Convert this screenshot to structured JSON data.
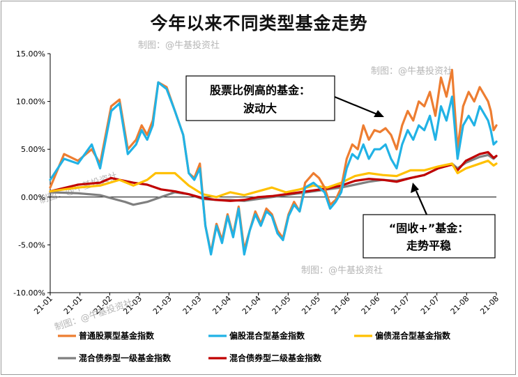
{
  "title": "今年以来不同类型基金走势",
  "watermarks": [
    "制图：@牛基投资社",
    "制图：@牛基投资社",
    "制图：@牛基投资社",
    "制图：@牛基投资社",
    "制图：@牛基投资社"
  ],
  "annotations": [
    {
      "lines": [
        "股票比例高的基金：",
        "波动大"
      ]
    },
    {
      "lines": [
        "“固收+”基金：",
        "走势平稳"
      ]
    }
  ],
  "chart_data": {
    "type": "line",
    "title": "今年以来不同类型基金走势",
    "ylim": [
      -10,
      15
    ],
    "y_ticks": [
      "15.00%",
      "10.00%",
      "5.00%",
      "0.00%",
      "-5.00%",
      "-10.00%"
    ],
    "x_tick_labels": [
      "21-01",
      "21-01",
      "21-02",
      "21-03",
      "21-03",
      "21-03",
      "21-04",
      "21-04",
      "21-05",
      "21-05",
      "21-06",
      "21-06",
      "21-07",
      "21-07",
      "21-08",
      "21-08"
    ],
    "grid": false,
    "legend": "bottom",
    "series": [
      {
        "name": "普通股票型基金指数",
        "color": "#ed7d31",
        "points": [
          [
            0,
            1.0
          ],
          [
            5,
            4.5
          ],
          [
            10,
            3.8
          ],
          [
            15,
            5.0
          ],
          [
            18,
            3.5
          ],
          [
            22,
            9.5
          ],
          [
            25,
            10.2
          ],
          [
            28,
            5.0
          ],
          [
            31,
            6.0
          ],
          [
            33,
            7.5
          ],
          [
            35,
            6.5
          ],
          [
            37,
            8.0
          ],
          [
            39,
            12.0
          ],
          [
            42,
            11.5
          ],
          [
            45,
            9.0
          ],
          [
            48,
            6.5
          ],
          [
            50,
            2.5
          ],
          [
            52,
            2.0
          ],
          [
            54,
            3.5
          ],
          [
            56,
            -3.0
          ],
          [
            58,
            -5.8
          ],
          [
            60,
            -2.8
          ],
          [
            62,
            -4.5
          ],
          [
            64,
            -1.8
          ],
          [
            66,
            -4.0
          ],
          [
            68,
            -1.0
          ],
          [
            70,
            -5.5
          ],
          [
            72,
            -3.5
          ],
          [
            74,
            -1.5
          ],
          [
            76,
            -2.8
          ],
          [
            78,
            -1.2
          ],
          [
            80,
            -1.8
          ],
          [
            82,
            -3.5
          ],
          [
            84,
            -4.3
          ],
          [
            86,
            -1.8
          ],
          [
            88,
            -0.5
          ],
          [
            90,
            -1.5
          ],
          [
            92,
            1.5
          ],
          [
            95,
            2.5
          ],
          [
            97,
            2.0
          ],
          [
            99,
            1.0
          ],
          [
            101,
            -0.8
          ],
          [
            103,
            -0.3
          ],
          [
            105,
            1.0
          ],
          [
            107,
            4.0
          ],
          [
            109,
            5.5
          ],
          [
            111,
            5.0
          ],
          [
            113,
            7.5
          ],
          [
            115,
            6.0
          ],
          [
            117,
            7.0
          ],
          [
            119,
            6.8
          ],
          [
            121,
            7.2
          ],
          [
            123,
            6.5
          ],
          [
            125,
            5.0
          ],
          [
            127,
            7.5
          ],
          [
            129,
            9.0
          ],
          [
            131,
            8.0
          ],
          [
            133,
            10.0
          ],
          [
            135,
            9.5
          ],
          [
            137,
            11.0
          ],
          [
            139,
            8.5
          ],
          [
            141,
            12.5
          ],
          [
            143,
            10.5
          ],
          [
            145,
            13.3
          ],
          [
            147,
            5.0
          ],
          [
            149,
            9.5
          ],
          [
            151,
            11.0
          ],
          [
            153,
            10.0
          ],
          [
            155,
            11.5
          ],
          [
            157,
            10.5
          ],
          [
            158,
            10.0
          ],
          [
            159,
            9.0
          ],
          [
            160,
            7.0
          ],
          [
            161,
            7.5
          ]
        ]
      },
      {
        "name": "偏股混合型基金指数",
        "color": "#21b2e5",
        "points": [
          [
            0,
            1.8
          ],
          [
            5,
            4.0
          ],
          [
            10,
            3.5
          ],
          [
            15,
            5.5
          ],
          [
            18,
            3.0
          ],
          [
            22,
            9.0
          ],
          [
            25,
            9.8
          ],
          [
            28,
            4.5
          ],
          [
            31,
            5.5
          ],
          [
            33,
            7.0
          ],
          [
            35,
            6.0
          ],
          [
            37,
            7.5
          ],
          [
            39,
            12.0
          ],
          [
            42,
            11.3
          ],
          [
            45,
            9.0
          ],
          [
            48,
            6.5
          ],
          [
            50,
            2.5
          ],
          [
            52,
            1.8
          ],
          [
            54,
            3.0
          ],
          [
            56,
            -3.0
          ],
          [
            58,
            -6.0
          ],
          [
            60,
            -3.0
          ],
          [
            62,
            -4.8
          ],
          [
            64,
            -2.0
          ],
          [
            66,
            -4.2
          ],
          [
            68,
            -1.2
          ],
          [
            70,
            -6.0
          ],
          [
            72,
            -3.5
          ],
          [
            74,
            -1.8
          ],
          [
            76,
            -3.0
          ],
          [
            78,
            -1.5
          ],
          [
            80,
            -2.0
          ],
          [
            82,
            -3.8
          ],
          [
            84,
            -4.5
          ],
          [
            86,
            -2.0
          ],
          [
            88,
            -0.8
          ],
          [
            90,
            -1.5
          ],
          [
            92,
            1.0
          ],
          [
            95,
            1.5
          ],
          [
            97,
            1.0
          ],
          [
            99,
            0.5
          ],
          [
            101,
            -1.2
          ],
          [
            103,
            -0.5
          ],
          [
            105,
            0.5
          ],
          [
            107,
            3.0
          ],
          [
            109,
            4.5
          ],
          [
            111,
            4.0
          ],
          [
            113,
            5.5
          ],
          [
            115,
            4.0
          ],
          [
            117,
            5.0
          ],
          [
            119,
            5.0
          ],
          [
            121,
            5.5
          ],
          [
            123,
            4.0
          ],
          [
            125,
            3.0
          ],
          [
            127,
            5.5
          ],
          [
            129,
            7.0
          ],
          [
            131,
            6.0
          ],
          [
            133,
            7.5
          ],
          [
            135,
            7.0
          ],
          [
            137,
            8.5
          ],
          [
            139,
            6.0
          ],
          [
            141,
            9.5
          ],
          [
            143,
            8.0
          ],
          [
            145,
            10.5
          ],
          [
            147,
            4.0
          ],
          [
            149,
            7.5
          ],
          [
            151,
            8.5
          ],
          [
            153,
            7.5
          ],
          [
            155,
            9.5
          ],
          [
            157,
            8.5
          ],
          [
            158,
            8.0
          ],
          [
            159,
            7.0
          ],
          [
            160,
            5.5
          ],
          [
            161,
            5.8
          ]
        ]
      },
      {
        "name": "偏债混合型基金指数",
        "color": "#ffc000",
        "points": [
          [
            0,
            0.6
          ],
          [
            10,
            1.0
          ],
          [
            18,
            1.2
          ],
          [
            25,
            1.8
          ],
          [
            30,
            1.2
          ],
          [
            35,
            1.8
          ],
          [
            38,
            2.5
          ],
          [
            45,
            2.5
          ],
          [
            50,
            1.2
          ],
          [
            55,
            0.3
          ],
          [
            60,
            0.0
          ],
          [
            65,
            0.5
          ],
          [
            70,
            0.2
          ],
          [
            75,
            0.6
          ],
          [
            80,
            1.0
          ],
          [
            85,
            0.5
          ],
          [
            90,
            0.8
          ],
          [
            95,
            1.2
          ],
          [
            100,
            1.0
          ],
          [
            105,
            1.5
          ],
          [
            110,
            2.2
          ],
          [
            115,
            2.5
          ],
          [
            120,
            2.3
          ],
          [
            125,
            2.2
          ],
          [
            130,
            2.8
          ],
          [
            135,
            2.8
          ],
          [
            140,
            3.2
          ],
          [
            145,
            3.5
          ],
          [
            147,
            2.5
          ],
          [
            150,
            3.0
          ],
          [
            155,
            3.5
          ],
          [
            158,
            3.8
          ],
          [
            160,
            3.3
          ],
          [
            161,
            3.5
          ]
        ]
      },
      {
        "name": "混合债券型一级基金指数",
        "color": "#7f7f7f",
        "points": [
          [
            0,
            0.5
          ],
          [
            10,
            0.4
          ],
          [
            18,
            0.2
          ],
          [
            23,
            -0.2
          ],
          [
            27,
            -0.5
          ],
          [
            30,
            -0.8
          ],
          [
            35,
            -0.5
          ],
          [
            40,
            0.0
          ],
          [
            45,
            0.5
          ],
          [
            50,
            0.3
          ],
          [
            55,
            -0.2
          ],
          [
            60,
            -0.3
          ],
          [
            65,
            -0.3
          ],
          [
            70,
            -0.4
          ],
          [
            75,
            -0.2
          ],
          [
            80,
            0.0
          ],
          [
            85,
            0.2
          ],
          [
            90,
            0.4
          ],
          [
            95,
            0.6
          ],
          [
            100,
            0.8
          ],
          [
            105,
            1.0
          ],
          [
            110,
            1.3
          ],
          [
            115,
            1.6
          ],
          [
            120,
            1.8
          ],
          [
            125,
            1.7
          ],
          [
            130,
            2.0
          ],
          [
            135,
            2.3
          ],
          [
            140,
            3.0
          ],
          [
            145,
            3.5
          ],
          [
            147,
            3.0
          ],
          [
            150,
            3.6
          ],
          [
            155,
            4.2
          ],
          [
            158,
            4.4
          ],
          [
            160,
            4.0
          ],
          [
            161,
            4.3
          ]
        ]
      },
      {
        "name": "混合债券型二级基金指数",
        "color": "#c00000",
        "points": [
          [
            0,
            0.6
          ],
          [
            10,
            1.3
          ],
          [
            18,
            1.5
          ],
          [
            22,
            2.0
          ],
          [
            25,
            1.8
          ],
          [
            30,
            1.5
          ],
          [
            35,
            1.3
          ],
          [
            40,
            0.8
          ],
          [
            45,
            0.6
          ],
          [
            50,
            0.3
          ],
          [
            55,
            -0.1
          ],
          [
            60,
            -0.3
          ],
          [
            65,
            -0.4
          ],
          [
            70,
            -0.3
          ],
          [
            75,
            0.0
          ],
          [
            80,
            0.1
          ],
          [
            85,
            0.3
          ],
          [
            90,
            0.5
          ],
          [
            95,
            0.7
          ],
          [
            100,
            0.9
          ],
          [
            105,
            1.2
          ],
          [
            110,
            1.7
          ],
          [
            115,
            1.9
          ],
          [
            120,
            1.8
          ],
          [
            125,
            1.6
          ],
          [
            130,
            2.0
          ],
          [
            135,
            2.3
          ],
          [
            140,
            3.0
          ],
          [
            145,
            3.4
          ],
          [
            147,
            2.8
          ],
          [
            150,
            3.8
          ],
          [
            155,
            4.5
          ],
          [
            158,
            4.7
          ],
          [
            160,
            4.1
          ],
          [
            161,
            4.3
          ]
        ]
      }
    ]
  }
}
